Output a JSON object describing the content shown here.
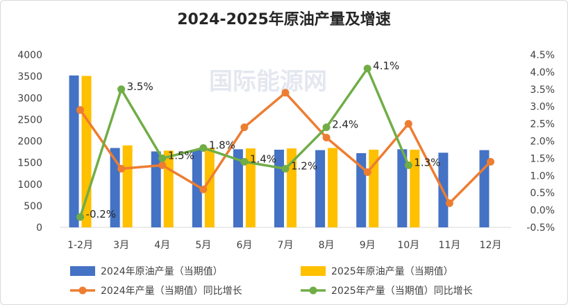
{
  "chart_data": {
    "type": "bar+line",
    "title": "2024-2025年原油产量及增速",
    "watermark": "国际能源网",
    "categories": [
      "1-2月",
      "3月",
      "4月",
      "5月",
      "6月",
      "7月",
      "8月",
      "9月",
      "10月",
      "11月",
      "12月"
    ],
    "left_axis": {
      "min": 0,
      "max": 4000,
      "step": 500,
      "ticks": [
        "0",
        "500",
        "1000",
        "1500",
        "2000",
        "2500",
        "3000",
        "3500",
        "4000"
      ]
    },
    "right_axis": {
      "min": -0.5,
      "max": 4.5,
      "step": 0.5,
      "ticks": [
        "-0.5%",
        "0.0%",
        "0.5%",
        "1.0%",
        "1.5%",
        "2.0%",
        "2.5%",
        "3.0%",
        "3.5%",
        "4.0%",
        "4.5%"
      ]
    },
    "bar_series": [
      {
        "name": "2024年原油产量（当期值）",
        "color": "#4472c4",
        "values": [
          3520,
          1840,
          1760,
          1800,
          1810,
          1800,
          1790,
          1720,
          1810,
          1730,
          1790
        ]
      },
      {
        "name": "2025年原油产量（当期值）",
        "color": "#ffc000",
        "values": [
          3510,
          1900,
          1780,
          1840,
          1830,
          1830,
          1840,
          1800,
          1800,
          null,
          null
        ]
      }
    ],
    "line_series": [
      {
        "name": "2024年产量（当期值）同比增长",
        "color": "#ed7d31",
        "values": [
          2.9,
          1.2,
          1.3,
          0.6,
          2.4,
          3.4,
          2.1,
          1.1,
          2.5,
          0.2,
          1.4
        ]
      },
      {
        "name": "2025年产量（当期值）同比增长",
        "color": "#70ad47",
        "values": [
          -0.2,
          3.5,
          1.5,
          1.8,
          1.4,
          1.2,
          2.4,
          4.1,
          1.3,
          null,
          null
        ],
        "labels": [
          "-0.2%",
          "3.5%",
          "1.5%",
          "1.8%",
          "1.4%",
          "1.2%",
          "2.4%",
          "4.1%",
          "1.3%",
          null,
          null
        ]
      }
    ],
    "legend_position": "bottom",
    "grid": false
  }
}
